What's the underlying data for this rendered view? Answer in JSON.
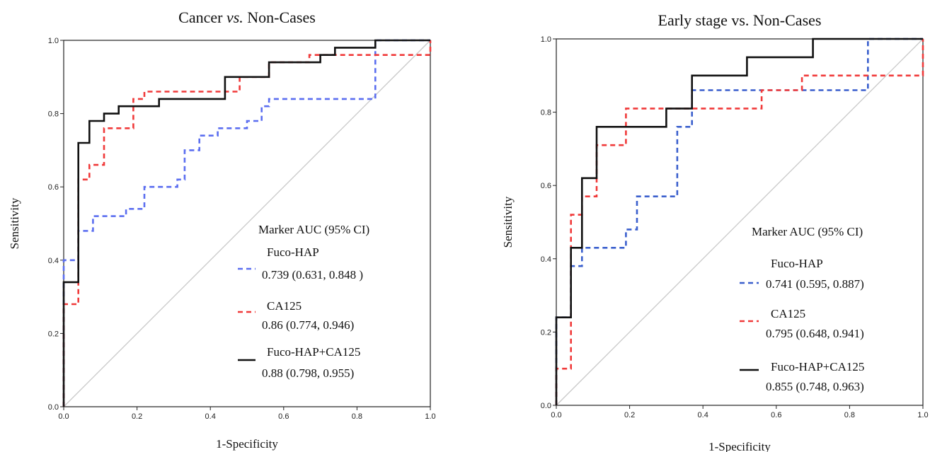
{
  "chart_data": [
    {
      "type": "line",
      "title": "Cancer vs. Non-Cases",
      "title_prefix": "Cancer ",
      "title_italic": "vs.",
      "title_suffix": " Non-Cases",
      "xlabel": "1-Specificity",
      "ylabel": "Sensitivity",
      "xlim": [
        0,
        1
      ],
      "ylim": [
        0,
        1
      ],
      "xticks": [
        "0.0",
        "0.2",
        "0.4",
        "0.6",
        "0.8",
        "1.0"
      ],
      "yticks": [
        "0.0",
        "0.2",
        "0.4",
        "0.6",
        "0.8",
        "1.0"
      ],
      "grid": false,
      "legend_position": "bottom-right",
      "legend_title": "Marker AUC (95% CI)",
      "diagonal_color": "#c8c8c8",
      "series": [
        {
          "name": "Fuco-HAP",
          "auc_text": "0.739 (0.631, 0.848 )",
          "color": "#5b6ef0",
          "dash": "dashed",
          "x": [
            0,
            0,
            0.04,
            0.04,
            0.08,
            0.08,
            0.17,
            0.17,
            0.22,
            0.22,
            0.31,
            0.31,
            0.33,
            0.33,
            0.37,
            0.37,
            0.42,
            0.42,
            0.5,
            0.5,
            0.54,
            0.54,
            0.56,
            0.56,
            0.62,
            0.62,
            0.85,
            0.85,
            1.0
          ],
          "y": [
            0,
            0.4,
            0.4,
            0.48,
            0.48,
            0.52,
            0.52,
            0.54,
            0.54,
            0.6,
            0.6,
            0.62,
            0.62,
            0.7,
            0.7,
            0.74,
            0.74,
            0.76,
            0.76,
            0.78,
            0.78,
            0.82,
            0.82,
            0.84,
            0.84,
            0.84,
            0.84,
            1.0,
            1.0
          ]
        },
        {
          "name": "CA125",
          "auc_text": "0.86 (0.774, 0.946)",
          "color": "#f03a3a",
          "dash": "dashed",
          "x": [
            0,
            0,
            0.04,
            0.04,
            0.07,
            0.07,
            0.11,
            0.11,
            0.19,
            0.19,
            0.22,
            0.22,
            0.48,
            0.48,
            0.56,
            0.56,
            0.67,
            0.67,
            1.0,
            1.0
          ],
          "y": [
            0,
            0.28,
            0.28,
            0.62,
            0.62,
            0.66,
            0.66,
            0.76,
            0.76,
            0.84,
            0.84,
            0.86,
            0.86,
            0.9,
            0.9,
            0.94,
            0.94,
            0.96,
            0.96,
            1.0
          ]
        },
        {
          "name": "Fuco-HAP+CA125",
          "auc_text": "0.88 (0.798, 0.955)",
          "color": "#111111",
          "dash": "solid",
          "x": [
            0,
            0,
            0.04,
            0.04,
            0.07,
            0.07,
            0.11,
            0.11,
            0.15,
            0.15,
            0.26,
            0.26,
            0.44,
            0.44,
            0.56,
            0.56,
            0.7,
            0.7,
            0.74,
            0.74,
            0.85,
            0.85,
            1.0
          ],
          "y": [
            0,
            0.34,
            0.34,
            0.72,
            0.72,
            0.78,
            0.78,
            0.8,
            0.8,
            0.82,
            0.82,
            0.84,
            0.84,
            0.9,
            0.9,
            0.94,
            0.94,
            0.96,
            0.96,
            0.98,
            0.98,
            1.0,
            1.0
          ]
        }
      ]
    },
    {
      "type": "line",
      "title": "Early stage vs. Non-Cases",
      "title_prefix": "Early stage vs. Non-Cases",
      "title_italic": "",
      "title_suffix": "",
      "xlabel": "1-Specificity",
      "ylabel": "Sensitivity",
      "xlim": [
        0,
        1
      ],
      "ylim": [
        0,
        1
      ],
      "xticks": [
        "0.0",
        "0.2",
        "0.4",
        "0.6",
        "0.8",
        "1.0"
      ],
      "yticks": [
        "0.0",
        "0.2",
        "0.4",
        "0.6",
        "0.8",
        "1.0"
      ],
      "grid": false,
      "legend_position": "bottom-right",
      "legend_title": "Marker AUC (95% CI)",
      "diagonal_color": "#c8c8c8",
      "series": [
        {
          "name": "Fuco-HAP",
          "auc_text": "0.741 (0.595, 0.887)",
          "color": "#3a5fcd",
          "dash": "dashed",
          "x": [
            0,
            0,
            0.04,
            0.04,
            0.07,
            0.07,
            0.19,
            0.19,
            0.22,
            0.22,
            0.33,
            0.33,
            0.37,
            0.37,
            0.85,
            0.85,
            1.0
          ],
          "y": [
            0,
            0.24,
            0.24,
            0.38,
            0.38,
            0.43,
            0.43,
            0.48,
            0.48,
            0.57,
            0.57,
            0.76,
            0.76,
            0.86,
            0.86,
            1.0,
            1.0
          ]
        },
        {
          "name": "CA125",
          "auc_text": "0.795 (0.648, 0.941)",
          "color": "#f03a3a",
          "dash": "dashed",
          "x": [
            0,
            0,
            0.04,
            0.04,
            0.07,
            0.07,
            0.11,
            0.11,
            0.19,
            0.19,
            0.56,
            0.56,
            0.67,
            0.67,
            1.0,
            1.0
          ],
          "y": [
            0,
            0.1,
            0.1,
            0.52,
            0.52,
            0.57,
            0.57,
            0.71,
            0.71,
            0.81,
            0.81,
            0.86,
            0.86,
            0.9,
            0.9,
            1.0
          ]
        },
        {
          "name": "Fuco-HAP+CA125",
          "auc_text": "0.855 (0.748, 0.963)",
          "color": "#111111",
          "dash": "solid",
          "x": [
            0,
            0,
            0.04,
            0.04,
            0.07,
            0.07,
            0.11,
            0.11,
            0.3,
            0.3,
            0.37,
            0.37,
            0.52,
            0.52,
            0.7,
            0.7,
            1.0
          ],
          "y": [
            0,
            0.24,
            0.24,
            0.43,
            0.43,
            0.62,
            0.62,
            0.76,
            0.76,
            0.81,
            0.81,
            0.9,
            0.9,
            0.95,
            0.95,
            1.0,
            1.0
          ]
        }
      ]
    }
  ]
}
